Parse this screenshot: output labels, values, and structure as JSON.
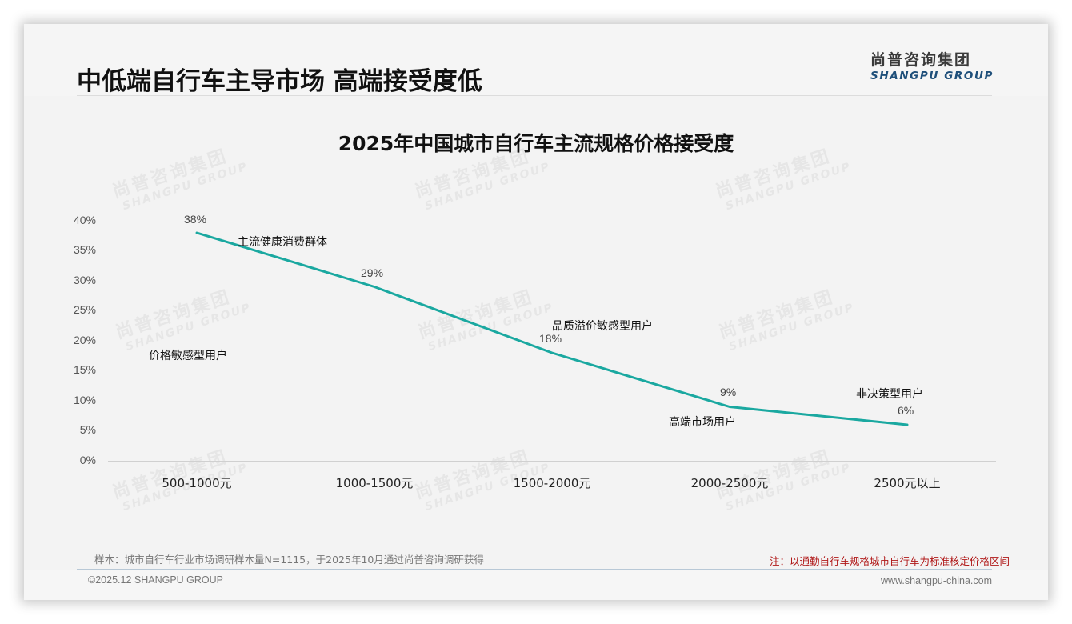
{
  "header": {
    "title": "中低端自行车主导市场 高端接受度低",
    "logo_cn": "尚普咨询集团",
    "logo_en": "SHANGPU GROUP"
  },
  "watermark": {
    "cn": "尚普咨询集团",
    "en": "SHANGPU GROUP"
  },
  "chart_data": {
    "type": "line",
    "title": "2025年中国城市自行车主流规格价格接受度",
    "xlabel": "",
    "ylabel": "",
    "categories": [
      "500-1000元",
      "1000-1500元",
      "1500-2000元",
      "2000-2500元",
      "2500元以上"
    ],
    "values": [
      38,
      29,
      18,
      9,
      6
    ],
    "value_labels": [
      "38%",
      "29%",
      "18%",
      "9%",
      "6%"
    ],
    "y_ticks": [
      "0%",
      "5%",
      "10%",
      "15%",
      "20%",
      "25%",
      "30%",
      "35%",
      "40%"
    ],
    "ylim": [
      0,
      40
    ],
    "grid": false,
    "legend": null,
    "line_color": "#1aa8a0",
    "annotations": [
      {
        "text": "价格敏感型用户",
        "category": "500-1000元"
      },
      {
        "text": "主流健康消费群体",
        "category": "1000-1500元"
      },
      {
        "text": "品质溢价敏感型用户",
        "category": "1500-2000元"
      },
      {
        "text": "高端市场用户",
        "category": "2000-2500元"
      },
      {
        "text": "非决策型用户",
        "category": "2500元以上"
      }
    ]
  },
  "notes": {
    "sample": "样本：城市自行车行业市场调研样本量N=1115，于2025年10月通过尚普咨询调研获得",
    "remark": "注：以通勤自行车规格城市自行车为标准核定价格区间",
    "remark_color": "#b01818"
  },
  "footer": {
    "copyright": "©2025.12 SHANGPU GROUP",
    "website": "www.shangpu-china.com"
  }
}
